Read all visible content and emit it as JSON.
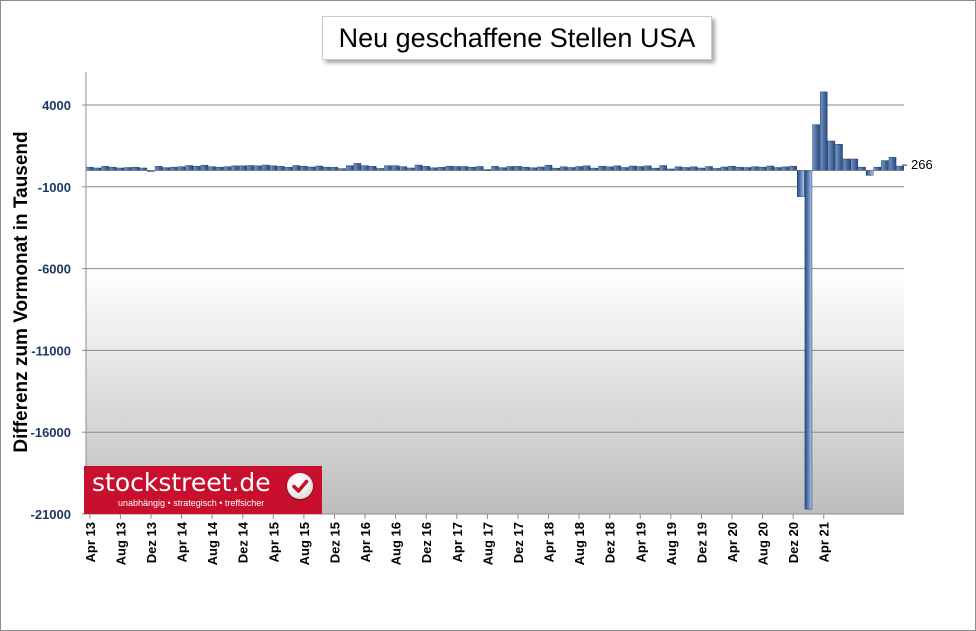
{
  "chart_data": {
    "type": "bar",
    "title": "Neu geschaffene Stellen USA",
    "xlabel": "",
    "ylabel": "Differenz zum Vormonat in Tausend",
    "ylim": [
      -21000,
      6000
    ],
    "yticks": [
      4000,
      -1000,
      -6000,
      -11000,
      -16000,
      -21000
    ],
    "ytick_labels": [
      "4000",
      "-1000",
      "-6000",
      "-11000",
      "-16000",
      "-21000"
    ],
    "grid": true,
    "start_month": "2013-04",
    "xtick_labels": [
      "Apr 13",
      "Aug 13",
      "Dez 13",
      "Apr 14",
      "Aug 14",
      "Dez 14",
      "Apr 15",
      "Aug 15",
      "Dez 15",
      "Apr 16",
      "Aug 16",
      "Dez 16",
      "Apr 17",
      "Aug 17",
      "Dez 17",
      "Apr 18",
      "Aug 18",
      "Dez 18",
      "Apr 19",
      "Aug 19",
      "Dez 19",
      "Apr 20",
      "Aug 20",
      "Dez 20",
      "Apr 21"
    ],
    "values": [
      200,
      150,
      250,
      200,
      150,
      180,
      200,
      150,
      -50,
      250,
      170,
      200,
      230,
      300,
      260,
      320,
      230,
      200,
      230,
      280,
      280,
      300,
      280,
      330,
      280,
      250,
      190,
      300,
      260,
      210,
      270,
      200,
      190,
      110,
      290,
      430,
      290,
      250,
      120,
      290,
      290,
      230,
      150,
      330,
      250,
      160,
      190,
      260,
      240,
      240,
      200,
      240,
      50,
      250,
      170,
      240,
      250,
      200,
      160,
      210,
      320,
      140,
      220,
      180,
      240,
      280,
      140,
      260,
      220,
      280,
      180,
      270,
      240,
      280,
      140,
      300,
      90,
      220,
      180,
      220,
      150,
      240,
      120,
      210,
      260,
      200,
      180,
      230,
      200,
      270,
      180,
      220,
      260,
      -1600,
      -20700,
      2800,
      4800,
      1800,
      1600,
      700,
      700,
      200,
      -300,
      200,
      600,
      800,
      266
    ],
    "annotation": "266"
  },
  "logo": {
    "name": "stockstreet.de",
    "tagline": "unabhängig • strategisch • treffsicher"
  }
}
